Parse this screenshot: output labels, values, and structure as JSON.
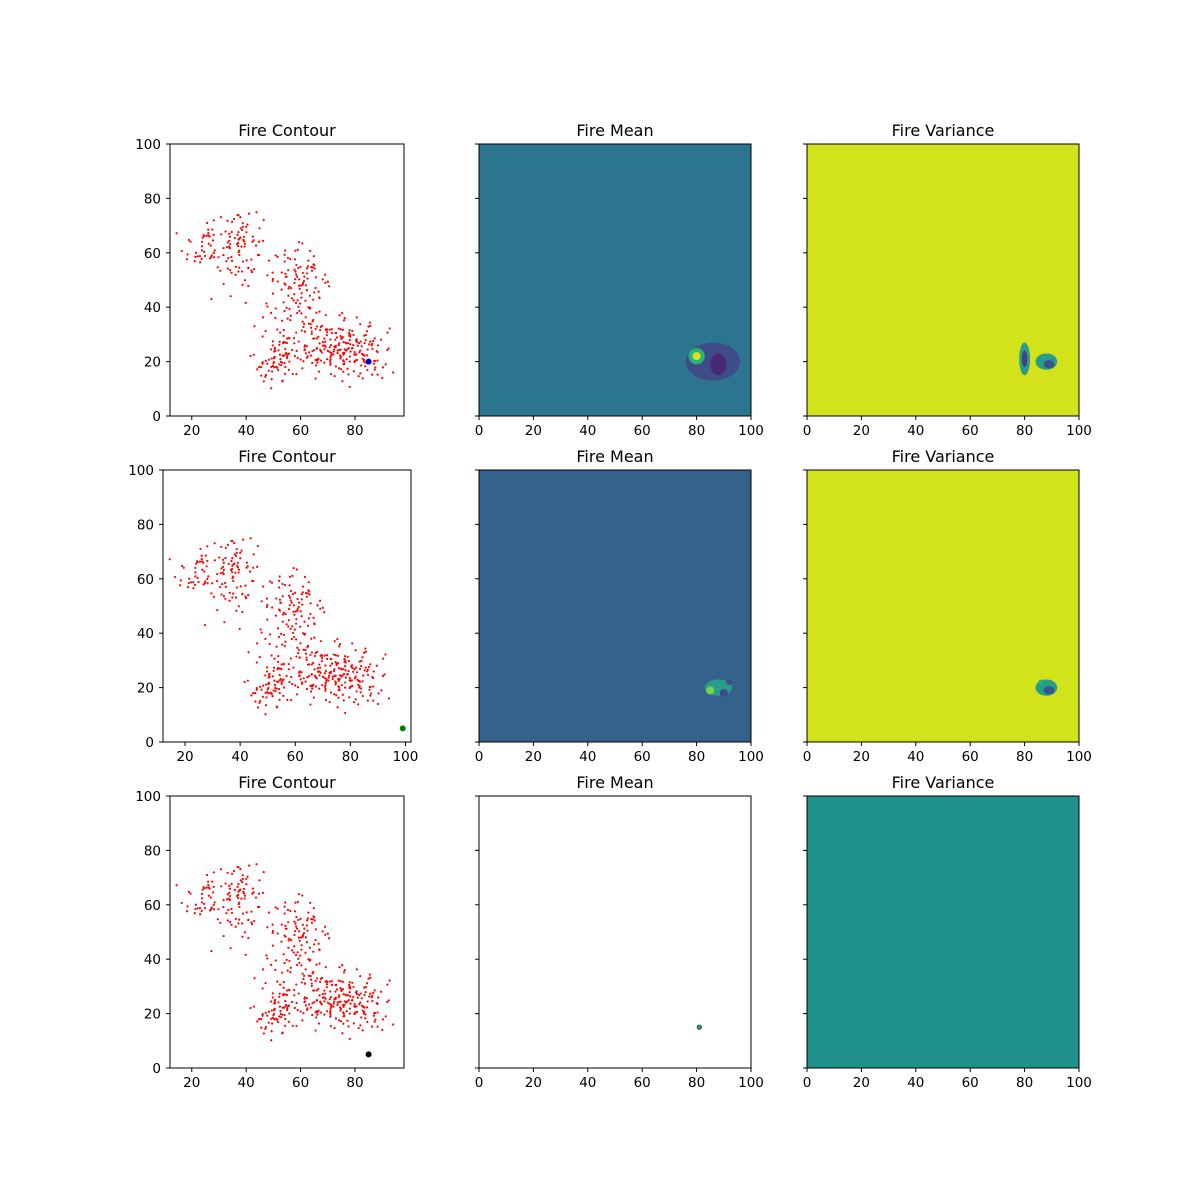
{
  "chart_data": [
    {
      "type": "scatter",
      "title": "Fire Contour",
      "xlim": [
        12,
        98
      ],
      "ylim": [
        0,
        100
      ],
      "xticks": [
        20,
        40,
        60,
        80
      ],
      "yticks": [
        0,
        20,
        40,
        60,
        80,
        100
      ],
      "points_color": "#ff0000",
      "marker": {
        "x": 85,
        "y": 20,
        "color": "#0000cc"
      }
    },
    {
      "type": "heatmap",
      "title": "Fire Mean",
      "xlim": [
        0,
        100
      ],
      "ylim": [
        0,
        100
      ],
      "xticks": [
        0,
        20,
        40,
        60,
        80,
        100
      ],
      "background": "#2c758e",
      "blobs": [
        {
          "x": 86,
          "y": 20,
          "rx": 10,
          "ry": 7,
          "color": "#3e4d8a"
        },
        {
          "x": 80,
          "y": 22,
          "rx": 3,
          "ry": 3,
          "color": "#2bb07f"
        },
        {
          "x": 80,
          "y": 22,
          "rx": 1.5,
          "ry": 1.5,
          "color": "#d6e21a"
        },
        {
          "x": 88,
          "y": 19,
          "rx": 3,
          "ry": 4,
          "color": "#482878"
        }
      ]
    },
    {
      "type": "heatmap",
      "title": "Fire Variance",
      "xlim": [
        0,
        100
      ],
      "ylim": [
        0,
        100
      ],
      "xticks": [
        0,
        20,
        40,
        60,
        80,
        100
      ],
      "background": "#d2e21b",
      "blobs": [
        {
          "x": 80,
          "y": 21,
          "rx": 2,
          "ry": 6,
          "color": "#2a9c8a"
        },
        {
          "x": 80,
          "y": 21,
          "rx": 1,
          "ry": 3,
          "color": "#433e85"
        },
        {
          "x": 88,
          "y": 20,
          "rx": 4,
          "ry": 3,
          "color": "#2a9c8a"
        },
        {
          "x": 89,
          "y": 19,
          "rx": 2,
          "ry": 1.5,
          "color": "#3b518b"
        }
      ]
    },
    {
      "type": "scatter",
      "title": "Fire Contour",
      "xlim": [
        12,
        102
      ],
      "ylim": [
        0,
        100
      ],
      "xticks": [
        20,
        40,
        60,
        80,
        100
      ],
      "yticks": [
        0,
        20,
        40,
        60,
        80,
        100
      ],
      "points_color": "#ff0000",
      "marker": {
        "x": 99,
        "y": 5,
        "color": "#008000"
      }
    },
    {
      "type": "heatmap",
      "title": "Fire Mean",
      "xlim": [
        0,
        100
      ],
      "ylim": [
        0,
        100
      ],
      "xticks": [
        0,
        20,
        40,
        60,
        80,
        100
      ],
      "background": "#34628d",
      "blobs": [
        {
          "x": 88,
          "y": 20,
          "rx": 5,
          "ry": 3,
          "color": "#2a9c8a"
        },
        {
          "x": 85,
          "y": 19,
          "rx": 1.5,
          "ry": 1.5,
          "color": "#7ad151"
        },
        {
          "x": 90,
          "y": 18,
          "rx": 1.5,
          "ry": 1.5,
          "color": "#3e4d8a"
        },
        {
          "x": 92,
          "y": 22,
          "rx": 1.2,
          "ry": 1,
          "color": "#3b518b"
        }
      ]
    },
    {
      "type": "heatmap",
      "title": "Fire Variance",
      "xlim": [
        0,
        100
      ],
      "ylim": [
        0,
        100
      ],
      "xticks": [
        0,
        20,
        40,
        60,
        80,
        100
      ],
      "background": "#d2e21b",
      "blobs": [
        {
          "x": 88,
          "y": 20,
          "rx": 4,
          "ry": 3,
          "color": "#2a9c8a"
        },
        {
          "x": 89,
          "y": 19,
          "rx": 2,
          "ry": 1.5,
          "color": "#3b518b"
        },
        {
          "x": 86,
          "y": 22,
          "rx": 1,
          "ry": 1,
          "color": "#2bb07f"
        }
      ]
    },
    {
      "type": "scatter",
      "title": "Fire Contour",
      "xlim": [
        12,
        98
      ],
      "ylim": [
        0,
        100
      ],
      "xticks": [
        20,
        40,
        60,
        80
      ],
      "yticks": [
        0,
        20,
        40,
        60,
        80,
        100
      ],
      "points_color": "#ff0000",
      "marker": {
        "x": 85,
        "y": 5,
        "color": "#000000"
      }
    },
    {
      "type": "heatmap",
      "title": "Fire Mean",
      "xlim": [
        0,
        100
      ],
      "ylim": [
        0,
        100
      ],
      "xticks": [
        0,
        20,
        40,
        60,
        80,
        100
      ],
      "background": "#ffffff",
      "blobs": [
        {
          "x": 81,
          "y": 15,
          "rx": 0.8,
          "ry": 0.8,
          "color": "#2a9c8a"
        }
      ]
    },
    {
      "type": "heatmap",
      "title": "Fire Variance",
      "xlim": [
        0,
        100
      ],
      "ylim": [
        0,
        100
      ],
      "xticks": [
        0,
        20,
        40,
        60,
        80,
        100
      ],
      "background": "#21918c",
      "blobs": []
    }
  ]
}
